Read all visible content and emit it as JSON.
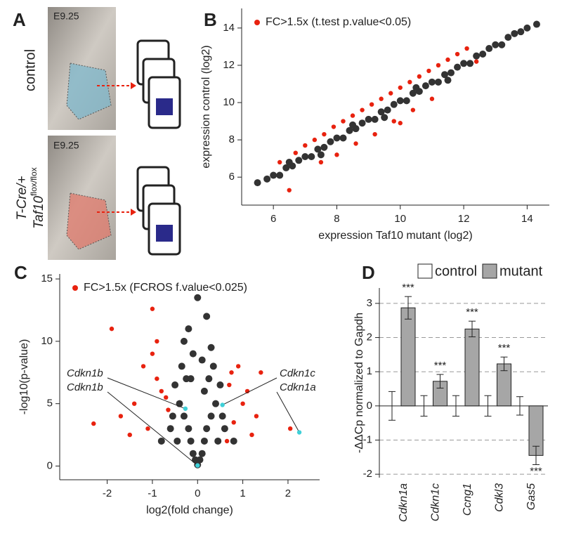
{
  "panel_a": {
    "label": "A",
    "stages": [
      "E9.25",
      "E9.25"
    ],
    "control_label": "control",
    "mutant_label": [
      "T-Cre/+",
      "Taf10",
      "flox/flox"
    ]
  },
  "chart_data": [
    {
      "type": "scatter",
      "panel": "B",
      "xlabel": "expression Taf10 mutant (log2)",
      "ylabel": "expression control (log2)",
      "xlim": [
        5.0,
        14.7
      ],
      "ylim": [
        4.5,
        15.05
      ],
      "xticks": [
        6,
        8,
        10,
        12,
        14
      ],
      "yticks": [
        6,
        8,
        10,
        12,
        14
      ],
      "legend": "upper left",
      "series": [
        {
          "color": "#333333",
          "x": [
            5.5,
            5.8,
            6.0,
            6.2,
            6.4,
            6.6,
            6.8,
            7.0,
            7.2,
            7.4,
            7.6,
            7.8,
            8.0,
            8.2,
            8.4,
            8.6,
            8.8,
            9.0,
            9.2,
            9.4,
            9.6,
            9.8,
            10.0,
            10.2,
            10.4,
            10.6,
            10.8,
            11.0,
            11.2,
            11.4,
            11.6,
            11.8,
            12.0,
            12.2,
            12.4,
            12.6,
            12.8,
            13.0,
            13.2,
            13.4,
            13.6,
            13.8,
            14.0,
            14.3,
            6.5,
            7.5,
            8.5,
            9.5,
            10.5,
            11.5
          ],
          "y": [
            5.7,
            5.9,
            6.1,
            6.1,
            6.5,
            6.6,
            6.9,
            7.1,
            7.1,
            7.5,
            7.6,
            7.9,
            8.1,
            8.1,
            8.5,
            8.6,
            8.9,
            9.1,
            9.1,
            9.5,
            9.6,
            9.9,
            10.1,
            10.1,
            10.5,
            10.6,
            10.9,
            11.1,
            11.1,
            11.5,
            11.6,
            11.9,
            12.1,
            12.1,
            12.5,
            12.6,
            12.9,
            13.1,
            13.1,
            13.5,
            13.7,
            13.8,
            14.0,
            14.2,
            6.8,
            7.2,
            8.8,
            9.2,
            10.8,
            11.2
          ]
        },
        {
          "name": "FC>1.5x (t.test p.value<0.05)",
          "color": "#e8220f",
          "x": [
            6.2,
            6.7,
            7.0,
            7.3,
            7.6,
            7.9,
            8.2,
            8.5,
            8.8,
            9.1,
            9.4,
            9.7,
            10.0,
            10.3,
            10.6,
            10.9,
            11.2,
            11.5,
            11.8,
            12.1,
            7.5,
            8.0,
            8.6,
            9.2,
            9.8,
            10.4,
            11.0,
            6.5,
            12.4,
            10.0
          ],
          "y": [
            6.8,
            7.3,
            7.7,
            8.0,
            8.3,
            8.7,
            9.0,
            9.3,
            9.6,
            9.9,
            10.2,
            10.5,
            10.8,
            11.1,
            11.4,
            11.7,
            12.0,
            12.3,
            12.6,
            12.9,
            6.8,
            7.2,
            7.8,
            8.3,
            9.0,
            9.6,
            10.2,
            5.3,
            12.2,
            8.9
          ]
        }
      ]
    },
    {
      "type": "scatter",
      "panel": "C",
      "xlabel": "log2(fold change)",
      "ylabel": "-log10(p-value)",
      "xlim": [
        -3.05,
        2.7
      ],
      "ylim": [
        -1.1,
        15.4
      ],
      "xticks": [
        -2,
        -1,
        0,
        1,
        2
      ],
      "yticks": [
        0,
        5,
        10,
        15
      ],
      "legend": "upper left",
      "series": [
        {
          "color": "#333333",
          "x": [
            -0.4,
            -0.3,
            -0.2,
            -0.15,
            -0.1,
            -0.05,
            0,
            0.05,
            0.1,
            0.15,
            0.2,
            0.3,
            0.4,
            -0.5,
            0.5,
            -0.25,
            0.25,
            -0.35,
            0.35,
            -0.6,
            0.6,
            -0.8,
            0.8,
            -0.3,
            0.3,
            -0.1,
            0.1,
            -0.2,
            0.2,
            0,
            -0.45,
            0.45,
            -0.55,
            0.55,
            -0.15,
            0.15
          ],
          "y": [
            5,
            4,
            3,
            2,
            1,
            0.5,
            0.1,
            0.5,
            1,
            2,
            3,
            4,
            5,
            6.5,
            6.5,
            7,
            7,
            8,
            8,
            3,
            3,
            2,
            2,
            10,
            9.5,
            9,
            8.5,
            11,
            12,
            13.5,
            2,
            2,
            4,
            4,
            7,
            6
          ]
        },
        {
          "name": "FC>1.5x (FCROS f.value<0.025)",
          "color": "#e8220f",
          "x": [
            -2.3,
            -1.9,
            -1.7,
            -1.4,
            -1.2,
            -1.0,
            -0.9,
            -0.8,
            -0.7,
            -0.65,
            -1.1,
            -1.5,
            1.0,
            1.1,
            1.3,
            0.9,
            0.8,
            0.7,
            0.65,
            1.2,
            2.05,
            -0.9,
            -1.0,
            0.75,
            1.4
          ],
          "y": [
            3.4,
            11,
            4,
            5,
            8,
            12.6,
            7,
            6,
            5.5,
            4.5,
            3,
            2.5,
            5,
            6,
            4,
            8,
            3.5,
            6.5,
            2,
            2.5,
            3,
            10,
            9,
            7.5,
            7.5
          ]
        }
      ],
      "highlight_color": "#3fd0d8",
      "annotations": [
        {
          "label": "Cdkn1b",
          "x": -0.27,
          "y": 4.6
        },
        {
          "label": "Cdkn1b",
          "x": 0.0,
          "y": 0.05
        },
        {
          "label": "Cdkn1c",
          "x": 0.55,
          "y": 4.9
        },
        {
          "label": "Cdkn1a",
          "x": 2.25,
          "y": 2.7
        }
      ]
    },
    {
      "type": "bar",
      "panel": "D",
      "ylabel": "-ΔΔCp normalized to Gapdh",
      "categories": [
        "Cdkn1a",
        "Cdkn1c",
        "Ccng1",
        "Cdkl3",
        "Gas5"
      ],
      "ylim": [
        -2.1,
        3.45
      ],
      "yticks": [
        -2,
        -1,
        0,
        1,
        2,
        3
      ],
      "grid": true,
      "series": [
        {
          "name": "control",
          "color": "#ffffff",
          "values": [
            0,
            0,
            0,
            0,
            0
          ],
          "errors": [
            0.42,
            0.3,
            0.3,
            0.3,
            0.27
          ]
        },
        {
          "name": "mutant",
          "color": "#a6a6a6",
          "values": [
            2.87,
            0.72,
            2.25,
            1.23,
            -1.45
          ],
          "errors": [
            0.33,
            0.2,
            0.23,
            0.2,
            0.27
          ],
          "significance": [
            "***",
            "***",
            "***",
            "***",
            "***"
          ]
        }
      ]
    }
  ]
}
